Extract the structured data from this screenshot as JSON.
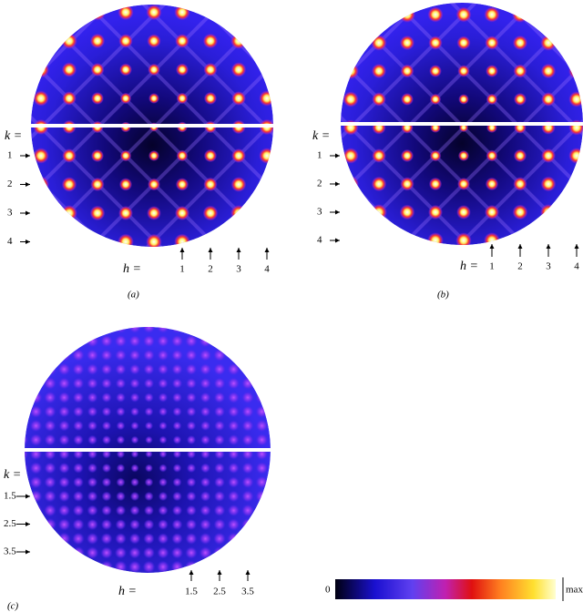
{
  "panels": [
    {
      "label": "(a)",
      "k_label": "k =",
      "k_values": [
        "1",
        "2",
        "3",
        "4"
      ],
      "h_label": "h =",
      "h_values": [
        "1",
        "2",
        "3",
        "4"
      ]
    },
    {
      "label": "(b)",
      "k_label": "k =",
      "k_values": [
        "1",
        "2",
        "3",
        "4"
      ],
      "h_label": "h =",
      "h_values": [
        "1",
        "2",
        "3",
        "4"
      ]
    },
    {
      "label": "(c)",
      "k_label": "k =",
      "k_values": [
        "1.5",
        "2.5",
        "3.5"
      ],
      "h_label": "h =",
      "h_values": [
        "1.5",
        "2.5",
        "3.5"
      ]
    }
  ],
  "colorbar": {
    "min_label": "0",
    "max_label": "max"
  }
}
